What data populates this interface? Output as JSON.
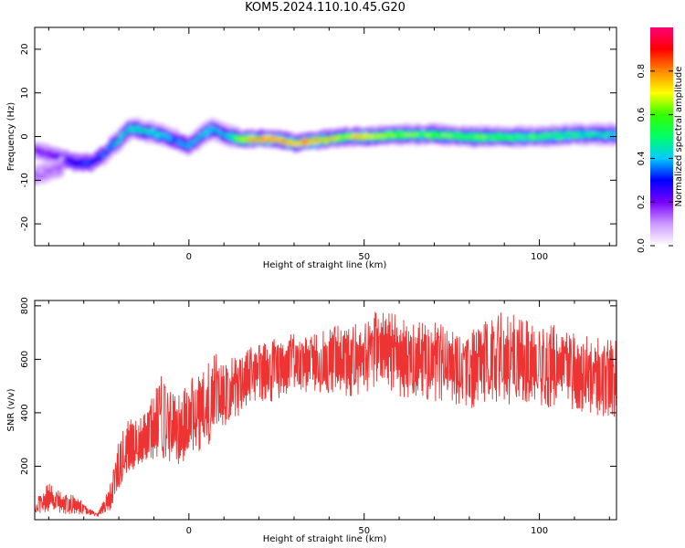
{
  "title": "KOM5.2024.110.10.45.G20",
  "chart_data": [
    {
      "type": "heatmap",
      "name": "spectrogram",
      "xlabel": "Height of straight line (km)",
      "ylabel": "Frequency (Hz)",
      "xlim": [
        -44,
        122
      ],
      "ylim": [
        -25,
        25
      ],
      "xticks": [
        0,
        50,
        100
      ],
      "yticks": [
        -20,
        -10,
        0,
        10,
        20
      ],
      "colorbar": {
        "label": "Normalized spectral amplitude",
        "range": [
          0,
          1
        ],
        "ticks": [
          "0.0",
          "0.2",
          "0.4",
          "0.6",
          "0.8"
        ],
        "colors": [
          "#ffffff",
          "#cc99ff",
          "#7700ff",
          "#0000ff",
          "#00ccff",
          "#00ff66",
          "#33ff00",
          "#ffff00",
          "#ff8800",
          "#ff0000",
          "#ff0077"
        ]
      },
      "ridge": {
        "x": [
          -44,
          -40,
          -36,
          -32,
          -28,
          -24,
          -22,
          -20,
          -18,
          -16,
          -14,
          -10,
          -6,
          -2,
          0,
          2,
          4,
          6,
          8,
          10,
          12,
          15,
          20,
          25,
          30,
          35,
          40,
          45,
          50,
          60,
          70,
          80,
          90,
          100,
          110,
          122
        ],
        "y": [
          -3,
          -4,
          -5,
          -6,
          -6,
          -4,
          -2,
          -1,
          1,
          2,
          1.5,
          1,
          0,
          -1.5,
          -2,
          -1,
          0.5,
          1.5,
          1.5,
          0.5,
          0,
          -0.5,
          -0.5,
          -0.5,
          -1.5,
          -1,
          -0.5,
          0,
          0,
          0.5,
          0.5,
          0,
          0,
          0,
          0.5,
          0.5
        ],
        "amplitude": [
          0.2,
          0.2,
          0.25,
          0.3,
          0.3,
          0.35,
          0.4,
          0.45,
          0.45,
          0.5,
          0.45,
          0.45,
          0.4,
          0.35,
          0.4,
          0.4,
          0.45,
          0.45,
          0.4,
          0.4,
          0.45,
          0.7,
          0.85,
          0.85,
          0.8,
          0.85,
          0.75,
          0.7,
          0.8,
          0.6,
          0.6,
          0.6,
          0.55,
          0.55,
          0.5,
          0.45
        ]
      },
      "secondary_ridge": {
        "x": [
          -44,
          -40,
          -36
        ],
        "y": [
          -9,
          -8,
          -7
        ],
        "amplitude": [
          0.15,
          0.15,
          0.15
        ]
      }
    },
    {
      "type": "line",
      "name": "snr",
      "xlabel": "Height of straight line (km)",
      "ylabel": "SNR (v/v)",
      "xlim": [
        -44,
        122
      ],
      "ylim": [
        0,
        820
      ],
      "xticks": [
        0,
        50,
        100
      ],
      "yticks": [
        200,
        400,
        600,
        800
      ],
      "color": "#ee3333",
      "envelope": {
        "x": [
          -44,
          -40,
          -36,
          -32,
          -28,
          -26,
          -24,
          -22,
          -20,
          -18,
          -16,
          -12,
          -8,
          -4,
          0,
          4,
          8,
          10,
          12,
          16,
          20,
          25,
          30,
          35,
          40,
          45,
          50,
          55,
          60,
          65,
          70,
          75,
          80,
          85,
          90,
          95,
          100,
          105,
          110,
          115,
          122
        ],
        "upper": [
          70,
          140,
          100,
          90,
          40,
          25,
          90,
          150,
          300,
          420,
          360,
          430,
          540,
          470,
          520,
          580,
          640,
          590,
          610,
          640,
          660,
          680,
          700,
          690,
          720,
          730,
          750,
          800,
          760,
          740,
          740,
          720,
          700,
          760,
          780,
          760,
          740,
          730,
          700,
          680,
          680
        ],
        "lower": [
          20,
          30,
          20,
          20,
          15,
          10,
          20,
          40,
          120,
          150,
          180,
          200,
          220,
          200,
          230,
          260,
          300,
          340,
          360,
          400,
          440,
          440,
          470,
          480,
          470,
          460,
          470,
          480,
          460,
          450,
          440,
          440,
          400,
          420,
          420,
          440,
          420,
          420,
          410,
          390,
          380
        ]
      }
    }
  ]
}
